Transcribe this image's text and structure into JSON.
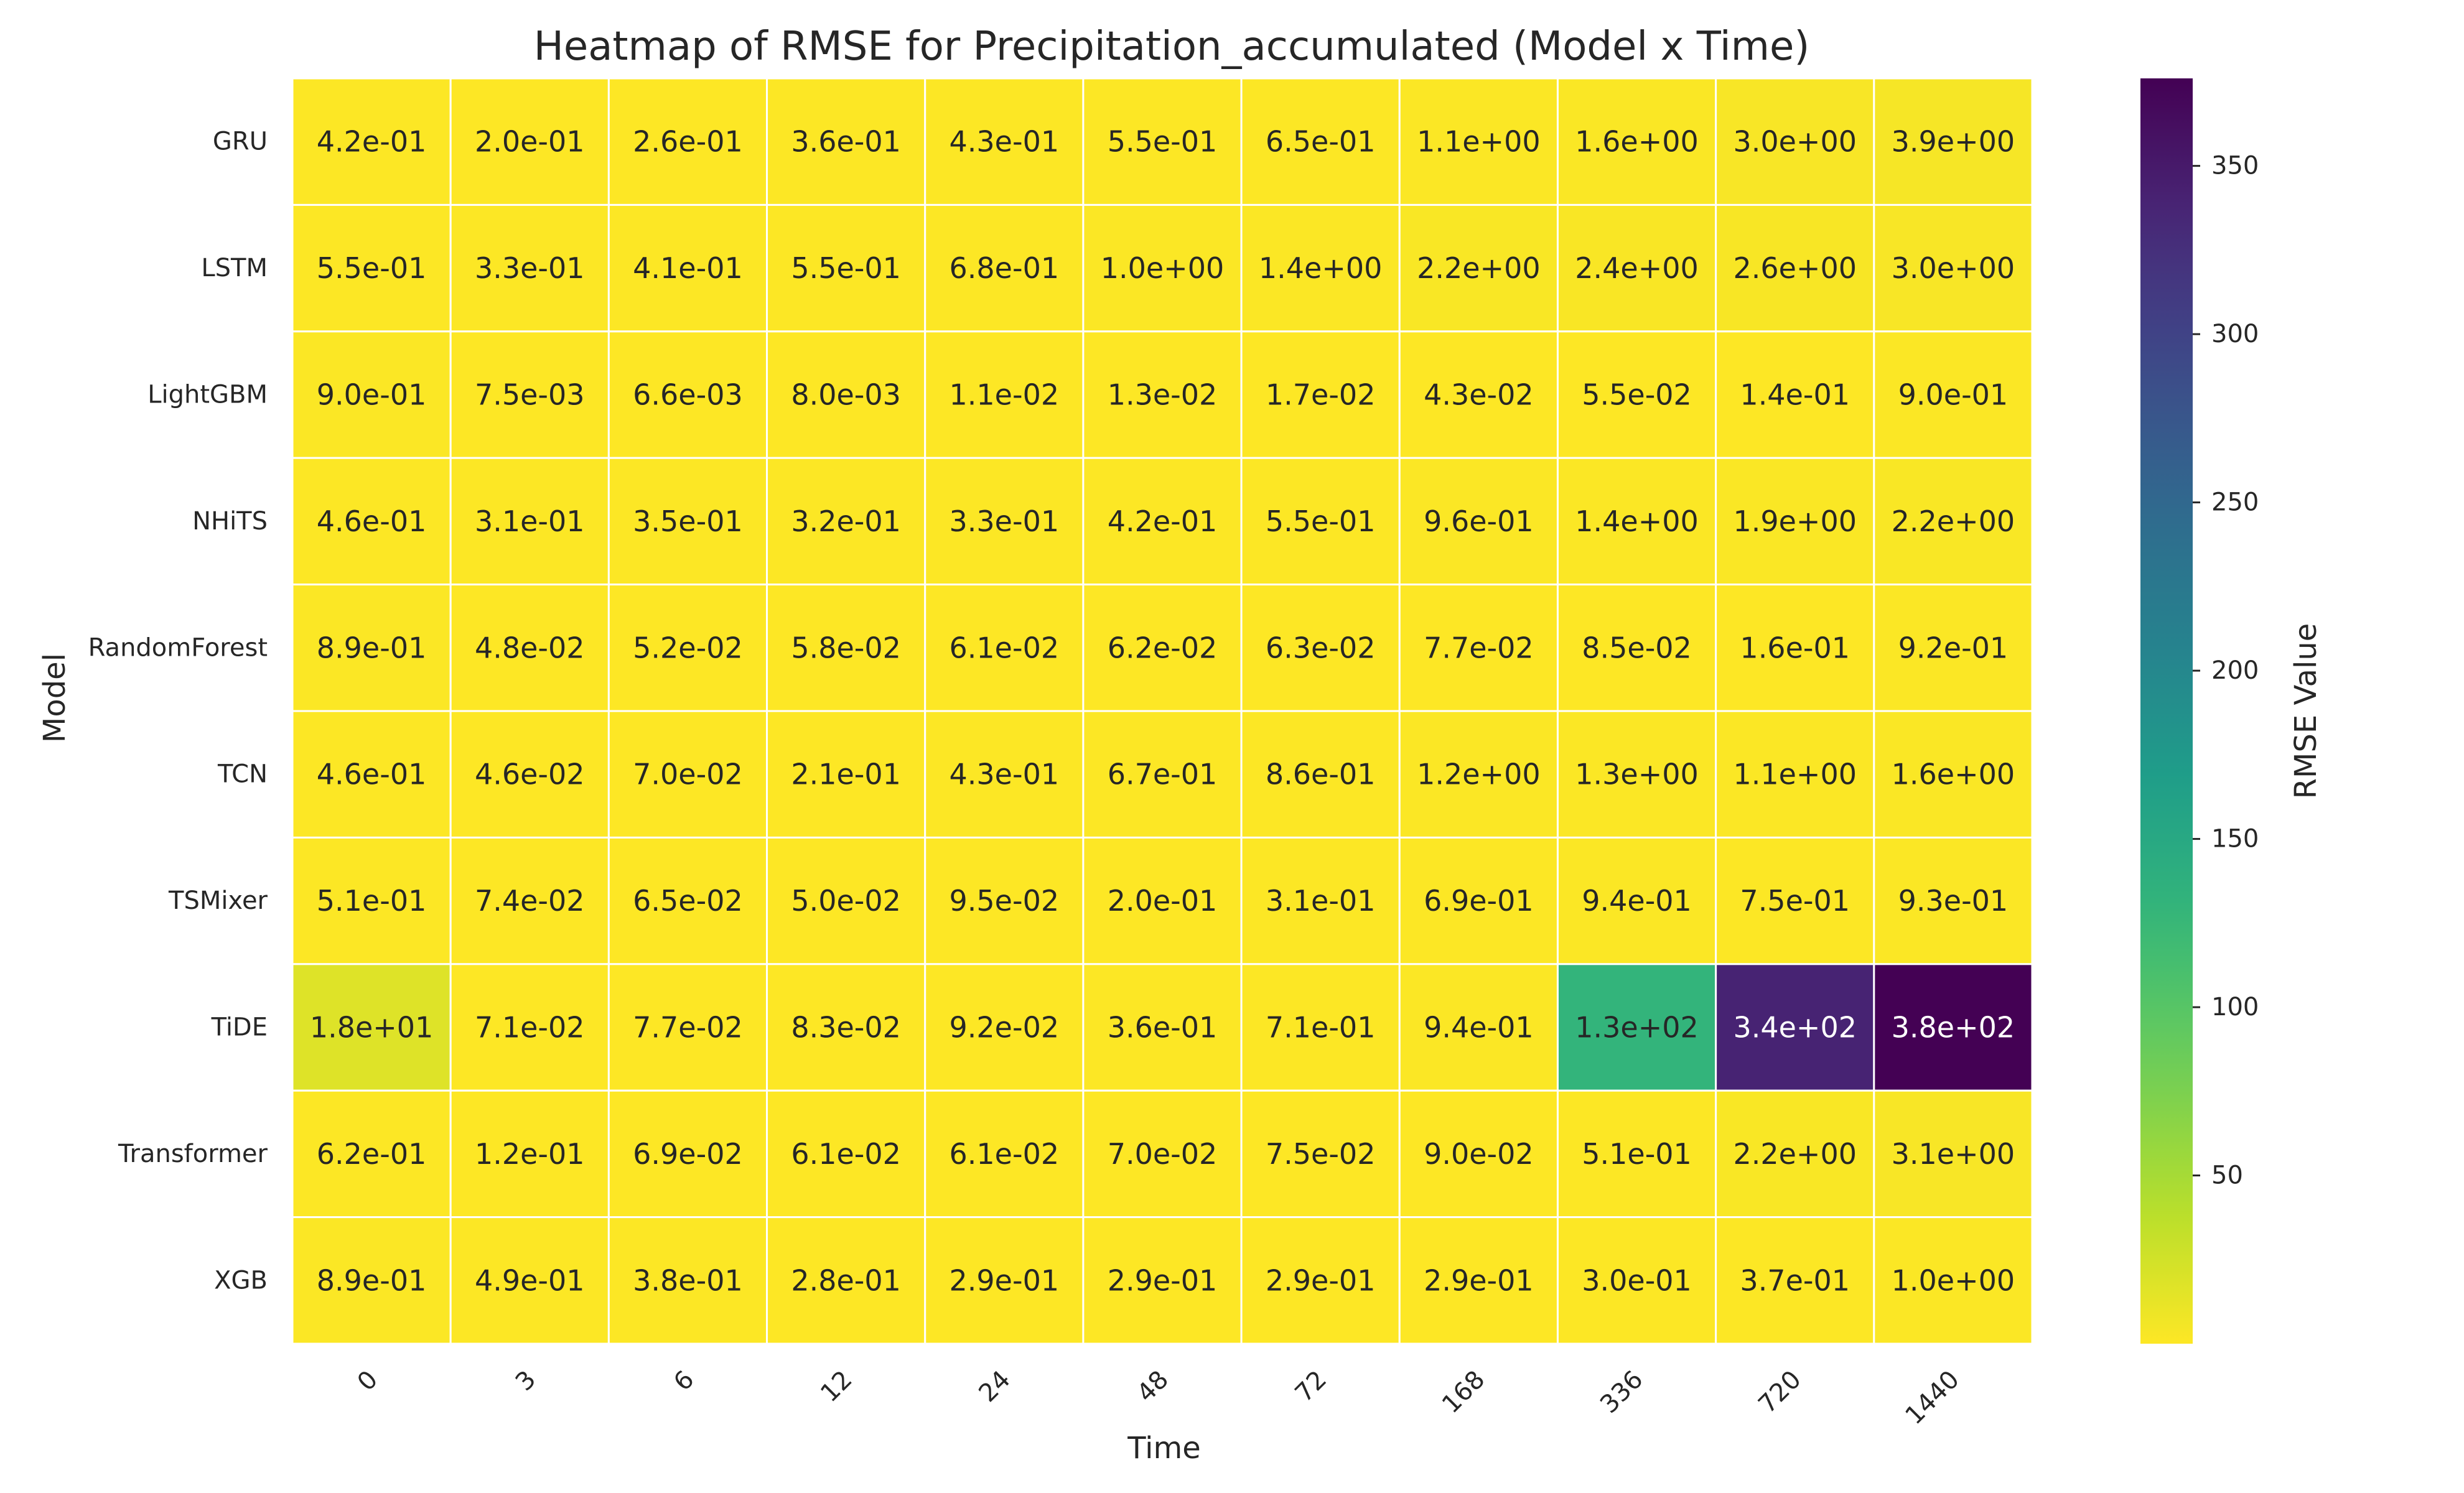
{
  "chart_data": {
    "type": "heatmap",
    "title": "Heatmap of RMSE for Precipitation_accumulated (Model x Time)",
    "xlabel": "Time",
    "ylabel": "Model",
    "colorbar_label": "RMSE Value",
    "colormap": "viridis_r",
    "vmin": 0.0066,
    "vmax": 376.0,
    "colorbar_ticks": [
      50,
      100,
      150,
      200,
      250,
      300,
      350
    ],
    "x": [
      "0",
      "3",
      "6",
      "12",
      "24",
      "48",
      "72",
      "168",
      "336",
      "720",
      "1440"
    ],
    "y": [
      "GRU",
      "LSTM",
      "LightGBM",
      "NHiTS",
      "RandomForest",
      "TCN",
      "TSMixer",
      "TiDE",
      "Transformer",
      "XGB"
    ],
    "values": [
      [
        0.42,
        0.2,
        0.26,
        0.36,
        0.43,
        0.55,
        0.65,
        1.1,
        1.6,
        3.0,
        3.9
      ],
      [
        0.55,
        0.33,
        0.41,
        0.55,
        0.68,
        1.0,
        1.4,
        2.2,
        2.4,
        2.6,
        3.0
      ],
      [
        0.9,
        0.0075,
        0.0066,
        0.008,
        0.011,
        0.013,
        0.017,
        0.043,
        0.055,
        0.14,
        0.9
      ],
      [
        0.46,
        0.31,
        0.35,
        0.32,
        0.33,
        0.42,
        0.55,
        0.96,
        1.4,
        1.9,
        2.2
      ],
      [
        0.89,
        0.048,
        0.052,
        0.058,
        0.061,
        0.062,
        0.063,
        0.077,
        0.085,
        0.16,
        0.92
      ],
      [
        0.46,
        0.046,
        0.07,
        0.21,
        0.43,
        0.67,
        0.86,
        1.2,
        1.3,
        1.1,
        1.6
      ],
      [
        0.51,
        0.074,
        0.065,
        0.05,
        0.095,
        0.2,
        0.31,
        0.69,
        0.94,
        0.75,
        0.93
      ],
      [
        18,
        0.071,
        0.077,
        0.083,
        0.092,
        0.36,
        0.71,
        0.94,
        130,
        340,
        380
      ],
      [
        0.62,
        0.12,
        0.069,
        0.061,
        0.061,
        0.07,
        0.075,
        0.09,
        0.51,
        2.2,
        3.1
      ],
      [
        0.89,
        0.49,
        0.38,
        0.28,
        0.29,
        0.29,
        0.29,
        0.29,
        0.3,
        0.37,
        1.0
      ]
    ],
    "annotations": [
      [
        "4.2e-01",
        "2.0e-01",
        "2.6e-01",
        "3.6e-01",
        "4.3e-01",
        "5.5e-01",
        "6.5e-01",
        "1.1e+00",
        "1.6e+00",
        "3.0e+00",
        "3.9e+00"
      ],
      [
        "5.5e-01",
        "3.3e-01",
        "4.1e-01",
        "5.5e-01",
        "6.8e-01",
        "1.0e+00",
        "1.4e+00",
        "2.2e+00",
        "2.4e+00",
        "2.6e+00",
        "3.0e+00"
      ],
      [
        "9.0e-01",
        "7.5e-03",
        "6.6e-03",
        "8.0e-03",
        "1.1e-02",
        "1.3e-02",
        "1.7e-02",
        "4.3e-02",
        "5.5e-02",
        "1.4e-01",
        "9.0e-01"
      ],
      [
        "4.6e-01",
        "3.1e-01",
        "3.5e-01",
        "3.2e-01",
        "3.3e-01",
        "4.2e-01",
        "5.5e-01",
        "9.6e-01",
        "1.4e+00",
        "1.9e+00",
        "2.2e+00"
      ],
      [
        "8.9e-01",
        "4.8e-02",
        "5.2e-02",
        "5.8e-02",
        "6.1e-02",
        "6.2e-02",
        "6.3e-02",
        "7.7e-02",
        "8.5e-02",
        "1.6e-01",
        "9.2e-01"
      ],
      [
        "4.6e-01",
        "4.6e-02",
        "7.0e-02",
        "2.1e-01",
        "4.3e-01",
        "6.7e-01",
        "8.6e-01",
        "1.2e+00",
        "1.3e+00",
        "1.1e+00",
        "1.6e+00"
      ],
      [
        "5.1e-01",
        "7.4e-02",
        "6.5e-02",
        "5.0e-02",
        "9.5e-02",
        "2.0e-01",
        "3.1e-01",
        "6.9e-01",
        "9.4e-01",
        "7.5e-01",
        "9.3e-01"
      ],
      [
        "1.8e+01",
        "7.1e-02",
        "7.7e-02",
        "8.3e-02",
        "9.2e-02",
        "3.6e-01",
        "7.1e-01",
        "9.4e-01",
        "1.3e+02",
        "3.4e+02",
        "3.8e+02"
      ],
      [
        "6.2e-01",
        "1.2e-01",
        "6.9e-02",
        "6.1e-02",
        "6.1e-02",
        "7.0e-02",
        "7.5e-02",
        "9.0e-02",
        "5.1e-01",
        "2.2e+00",
        "3.1e+00"
      ],
      [
        "8.9e-01",
        "4.9e-01",
        "3.8e-01",
        "2.8e-01",
        "2.9e-01",
        "2.9e-01",
        "2.9e-01",
        "2.9e-01",
        "3.0e-01",
        "3.7e-01",
        "1.0e+00"
      ]
    ]
  }
}
